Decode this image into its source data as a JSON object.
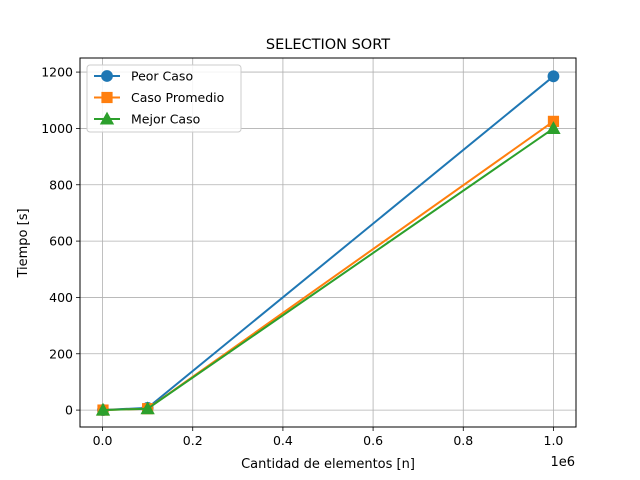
{
  "chart_data": {
    "type": "line",
    "title": "SELECTION SORT",
    "xlabel": "Cantidad de elementos [n]",
    "ylabel": "Tiempo [s]",
    "x_offset_label": "1e6",
    "xlim": [
      -50000,
      1050000
    ],
    "ylim": [
      -60,
      1250
    ],
    "x_ticks": [
      0,
      200000,
      400000,
      600000,
      800000,
      1000000
    ],
    "x_tick_labels": [
      "0.0",
      "0.2",
      "0.4",
      "0.6",
      "0.8",
      "1.0"
    ],
    "y_ticks": [
      0,
      200,
      400,
      600,
      800,
      1000,
      1200
    ],
    "y_tick_labels": [
      "0",
      "200",
      "400",
      "600",
      "800",
      "1000",
      "1200"
    ],
    "grid": true,
    "legend_position": "top-left",
    "x": [
      1000,
      100000,
      1000000
    ],
    "series": [
      {
        "name": "Peor Caso",
        "color": "#1f77b4",
        "marker": "circle",
        "values": [
          0.2,
          8,
          1185
        ]
      },
      {
        "name": "Caso Promedio",
        "color": "#ff7f0e",
        "marker": "square",
        "values": [
          0.1,
          5,
          1025
        ]
      },
      {
        "name": "Mejor Caso",
        "color": "#2ca02c",
        "marker": "triangle",
        "values": [
          0.1,
          5,
          1000
        ]
      }
    ]
  }
}
